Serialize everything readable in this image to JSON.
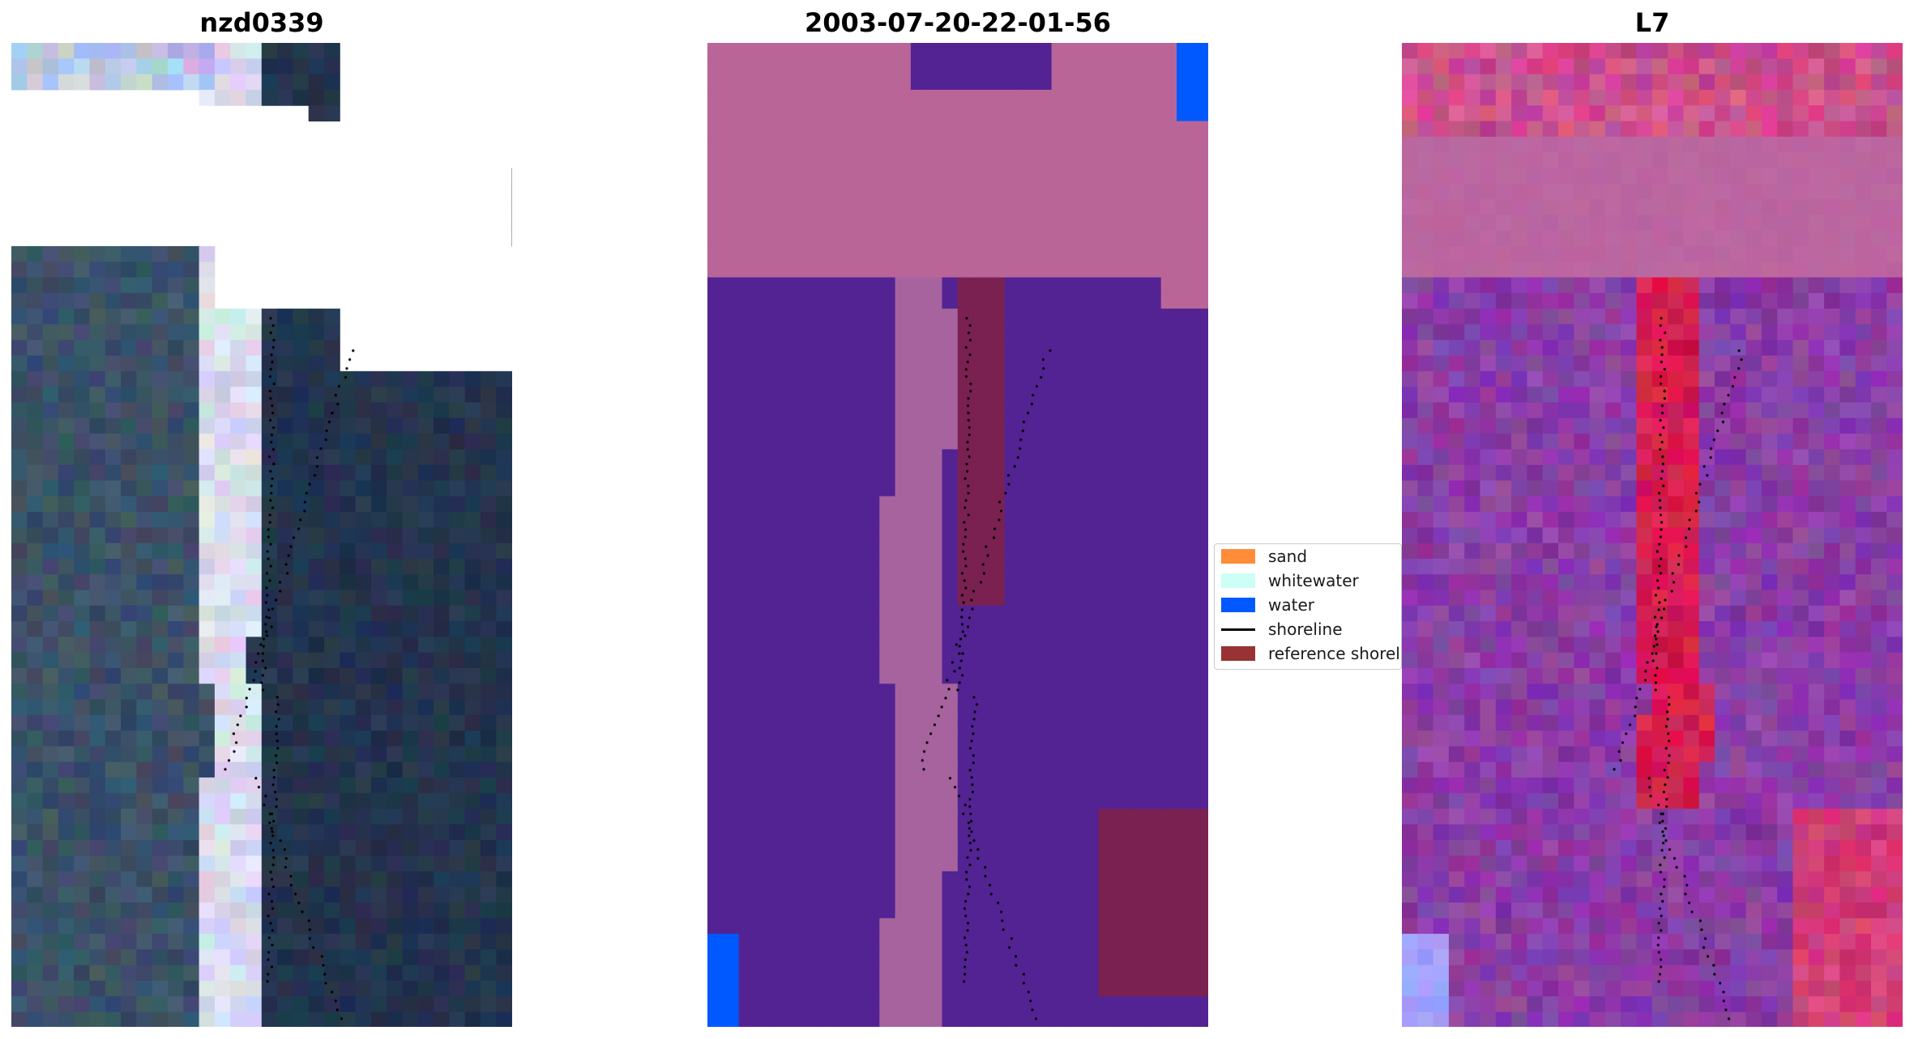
{
  "panels": [
    {
      "title": "nzd0339"
    },
    {
      "title": "2003-07-20-22-01-56"
    },
    {
      "title": "L7"
    }
  ],
  "legend": {
    "items": [
      {
        "label": "sand",
        "color": "#ff8c38",
        "kind": "patch"
      },
      {
        "label": "whitewater",
        "color": "#ccfff5",
        "kind": "patch"
      },
      {
        "label": "water",
        "color": "#0059ff",
        "kind": "patch"
      },
      {
        "label": "shoreline",
        "color": "#000000",
        "kind": "line"
      },
      {
        "label": "reference shoreline",
        "color": "#993333",
        "kind": "patch"
      }
    ]
  },
  "colors": {
    "rgb_land": "#3b5168",
    "rgb_sea": "#23344d",
    "rgb_beach": "#d8dced",
    "class_land": "#b96597",
    "class_sea": "#532394",
    "class_beach": "#a7639e",
    "class_dark": "#7a2151",
    "class_water": "#0059ff",
    "index_land": "#bb66a0",
    "index_sea": "#8a3da6",
    "index_beach": "#d61d4f",
    "index_light": "#a0a0ff"
  }
}
